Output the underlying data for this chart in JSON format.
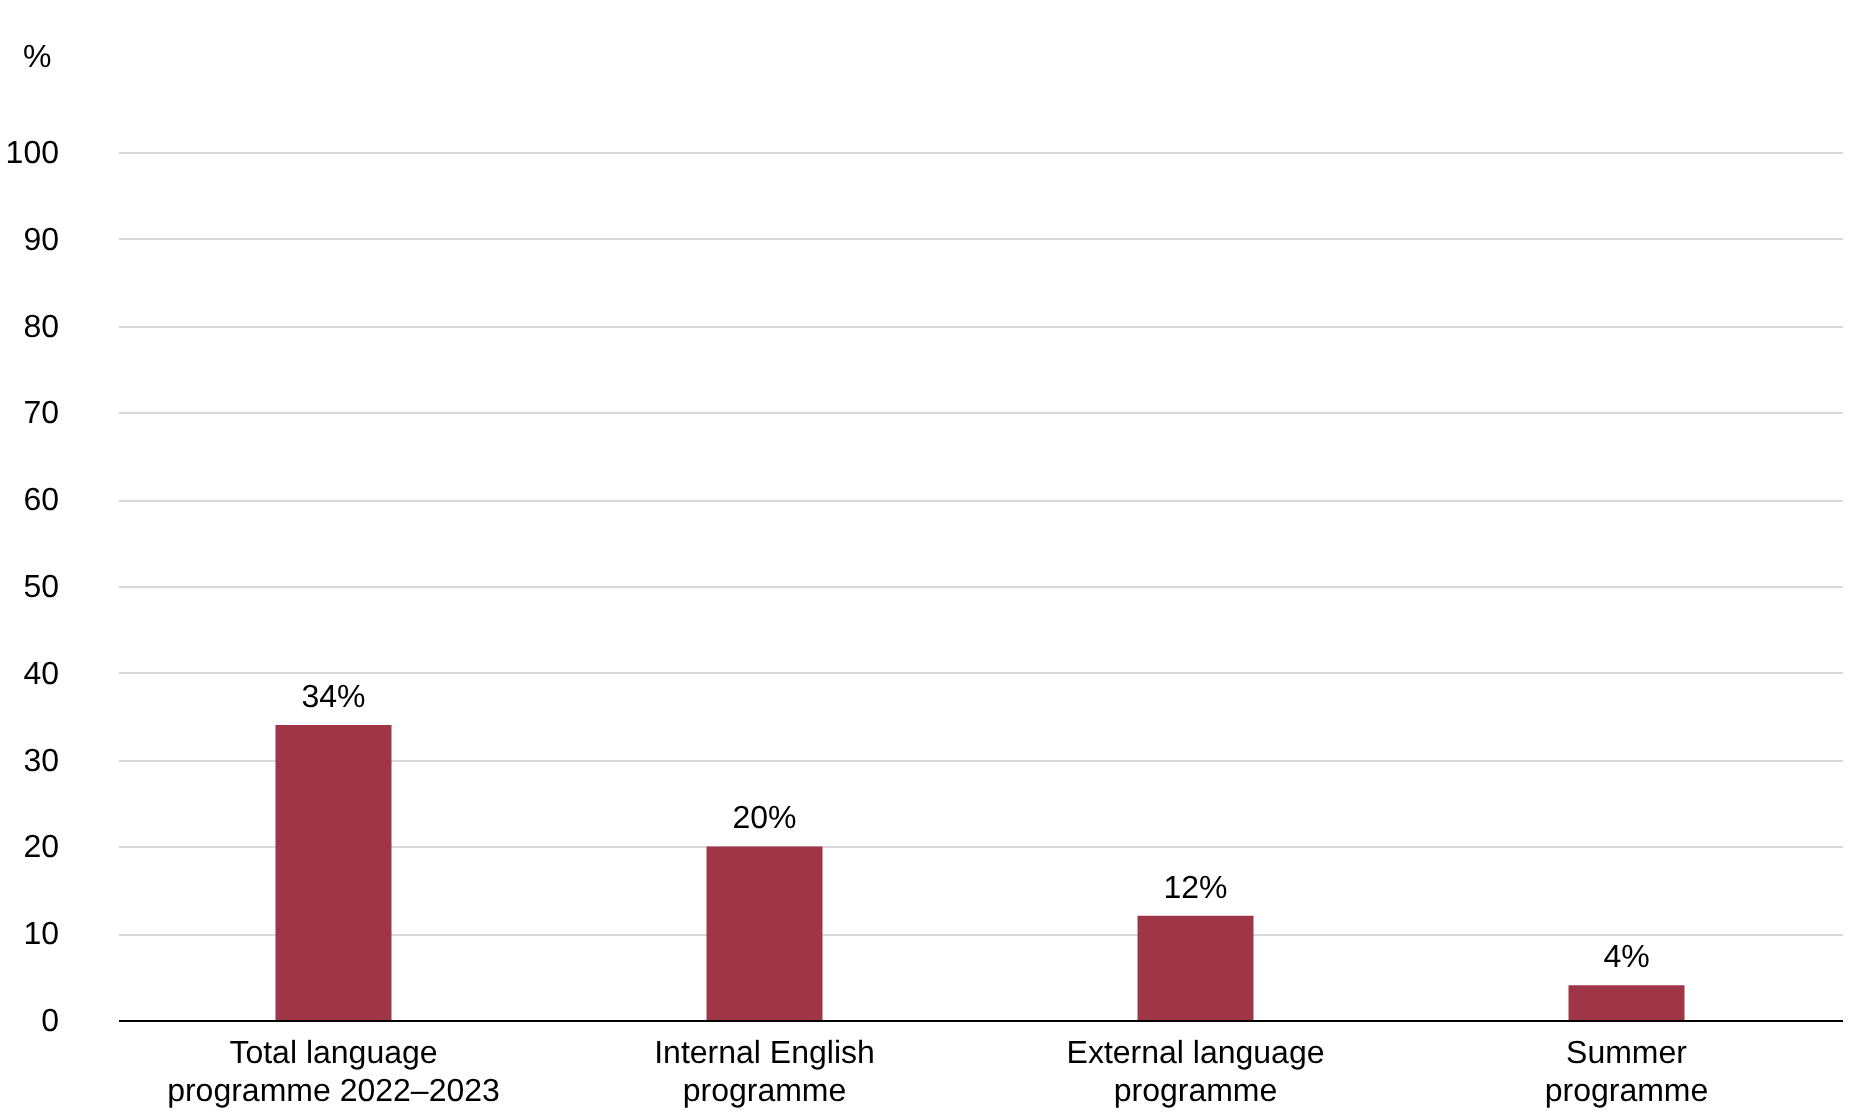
{
  "chart_data": {
    "type": "bar",
    "ylabel": "%",
    "categories": [
      "Total language programme 2022–2023",
      "Internal English programme",
      "External language programme",
      "Summer programme"
    ],
    "values": [
      34,
      20,
      12,
      4
    ],
    "value_labels": [
      "34%",
      "20%",
      "12%",
      "4%"
    ],
    "color": "#9e3648",
    "ylim": [
      0,
      100
    ],
    "yticks": [
      0,
      10,
      20,
      30,
      40,
      50,
      60,
      70,
      80,
      90,
      100
    ],
    "grid": "y"
  }
}
